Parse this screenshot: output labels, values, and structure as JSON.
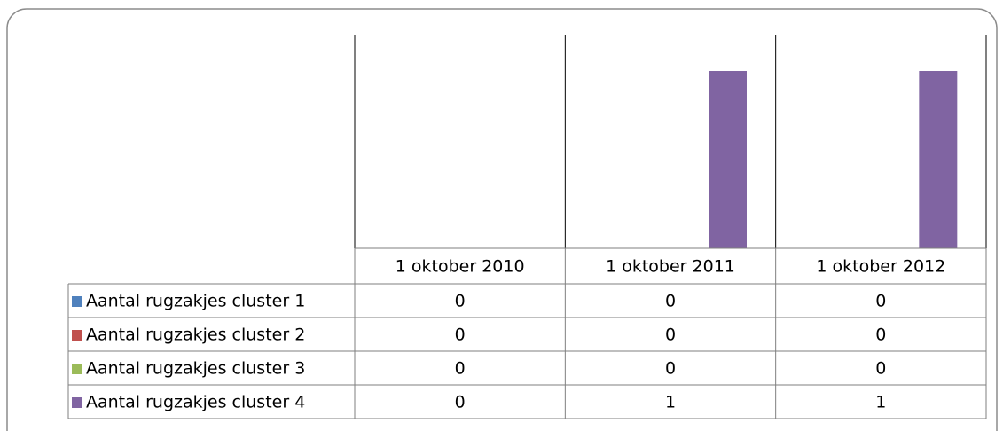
{
  "chart_data": {
    "type": "bar",
    "categories": [
      "1 oktober 2010",
      "1 oktober 2011",
      "1 oktober 2012"
    ],
    "series": [
      {
        "name": "Aantal rugzakjes cluster 1",
        "color": "#4f81bd",
        "values": [
          0,
          0,
          0
        ]
      },
      {
        "name": "Aantal rugzakjes cluster 2",
        "color": "#c0504d",
        "values": [
          0,
          0,
          0
        ]
      },
      {
        "name": "Aantal rugzakjes cluster 3",
        "color": "#9bbb59",
        "values": [
          0,
          0,
          0
        ]
      },
      {
        "name": "Aantal rugzakjes cluster 4",
        "color": "#8064a2",
        "values": [
          0,
          1,
          1
        ]
      }
    ],
    "ylim": [
      0,
      1.2
    ]
  }
}
